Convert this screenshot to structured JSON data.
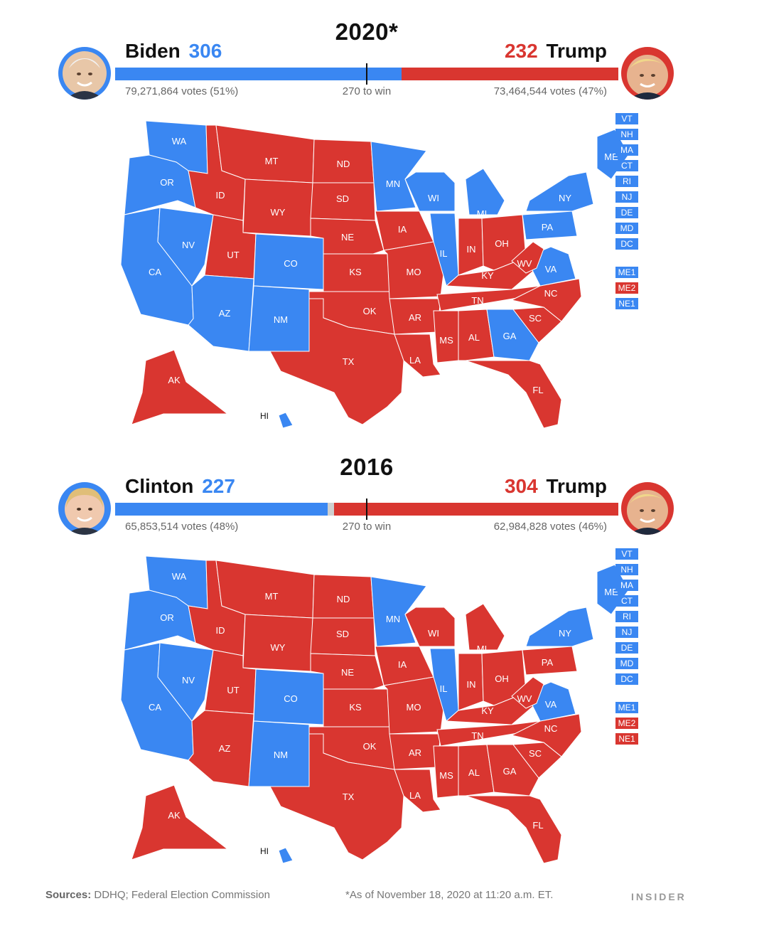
{
  "colors": {
    "dem": "#3a87f2",
    "rep": "#d93630",
    "other": "#cfcfcf"
  },
  "y2020": {
    "year": "2020*",
    "left": {
      "name": "Biden",
      "votes": "306",
      "popular": "79,271,864 votes (51%)",
      "color": "#3a87f2"
    },
    "right": {
      "name": "Trump",
      "votes": "232",
      "popular": "73,464,544 votes (47%)",
      "color": "#d93630"
    },
    "to_win": "270 to win",
    "bar": {
      "dem": 306,
      "other": 0,
      "rep": 232,
      "total": 538
    },
    "states": {
      "WA": "D",
      "OR": "D",
      "CA": "D",
      "NV": "D",
      "ID": "R",
      "MT": "R",
      "WY": "R",
      "UT": "R",
      "AZ": "D",
      "CO": "D",
      "NM": "D",
      "ND": "R",
      "SD": "R",
      "NE": "R",
      "KS": "R",
      "OK": "R",
      "TX": "R",
      "MN": "D",
      "IA": "R",
      "MO": "R",
      "AR": "R",
      "LA": "R",
      "WI": "D",
      "IL": "D",
      "MI": "D",
      "IN": "R",
      "OH": "R",
      "KY": "R",
      "TN": "R",
      "MS": "R",
      "AL": "R",
      "GA": "D",
      "FL": "R",
      "SC": "R",
      "NC": "R",
      "VA": "D",
      "WV": "R",
      "PA": "D",
      "NY": "D",
      "ME": "D",
      "AK": "R",
      "HI": "D"
    },
    "small_states": [
      {
        "label": "VT",
        "party": "D"
      },
      {
        "label": "NH",
        "party": "D"
      },
      {
        "label": "MA",
        "party": "D"
      },
      {
        "label": "CT",
        "party": "D"
      },
      {
        "label": "RI",
        "party": "D"
      },
      {
        "label": "NJ",
        "party": "D"
      },
      {
        "label": "DE",
        "party": "D"
      },
      {
        "label": "MD",
        "party": "D"
      },
      {
        "label": "DC",
        "party": "D"
      }
    ],
    "districts": [
      {
        "label": "ME1",
        "party": "D"
      },
      {
        "label": "ME2",
        "party": "R"
      },
      {
        "label": "NE1",
        "party": "D"
      }
    ]
  },
  "y2016": {
    "year": "2016",
    "left": {
      "name": "Clinton",
      "votes": "227",
      "popular": "65,853,514 votes (48%)",
      "color": "#3a87f2"
    },
    "right": {
      "name": "Trump",
      "votes": "304",
      "popular": "62,984,828 votes (46%)",
      "color": "#d93630"
    },
    "to_win": "270 to win",
    "bar": {
      "dem": 227,
      "other": 7,
      "rep": 304,
      "total": 538
    },
    "states": {
      "WA": "D",
      "OR": "D",
      "CA": "D",
      "NV": "D",
      "ID": "R",
      "MT": "R",
      "WY": "R",
      "UT": "R",
      "AZ": "R",
      "CO": "D",
      "NM": "D",
      "ND": "R",
      "SD": "R",
      "NE": "R",
      "KS": "R",
      "OK": "R",
      "TX": "R",
      "MN": "D",
      "IA": "R",
      "MO": "R",
      "AR": "R",
      "LA": "R",
      "WI": "R",
      "IL": "D",
      "MI": "R",
      "IN": "R",
      "OH": "R",
      "KY": "R",
      "TN": "R",
      "MS": "R",
      "AL": "R",
      "GA": "R",
      "FL": "R",
      "SC": "R",
      "NC": "R",
      "VA": "D",
      "WV": "R",
      "PA": "R",
      "NY": "D",
      "ME": "D",
      "AK": "R",
      "HI": "D"
    },
    "small_states": [
      {
        "label": "VT",
        "party": "D"
      },
      {
        "label": "NH",
        "party": "D"
      },
      {
        "label": "MA",
        "party": "D"
      },
      {
        "label": "CT",
        "party": "D"
      },
      {
        "label": "RI",
        "party": "D"
      },
      {
        "label": "NJ",
        "party": "D"
      },
      {
        "label": "DE",
        "party": "D"
      },
      {
        "label": "MD",
        "party": "D"
      },
      {
        "label": "DC",
        "party": "D"
      }
    ],
    "districts": [
      {
        "label": "ME1",
        "party": "D"
      },
      {
        "label": "ME2",
        "party": "R"
      },
      {
        "label": "NE1",
        "party": "R"
      }
    ]
  },
  "footer": {
    "sources_label": "Sources:",
    "sources": "DDHQ; Federal Election Commission",
    "note": "*As of November 18, 2020 at 11:20 a.m. ET.",
    "brand": "INSIDER"
  }
}
